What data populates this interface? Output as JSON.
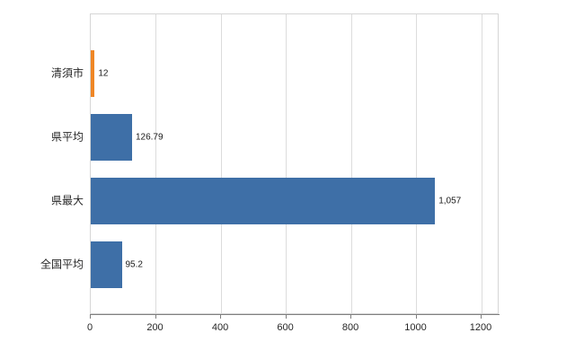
{
  "chart_data": {
    "type": "bar",
    "orientation": "horizontal",
    "title": "",
    "categories": [
      "清須市",
      "県平均",
      "県最大",
      "全国平均"
    ],
    "values": [
      12,
      126.79,
      1057,
      95.2
    ],
    "value_labels": [
      "12",
      "126.79",
      "1,057",
      "95.2"
    ],
    "series_colors": [
      "#ef8625",
      "#3e6fa7",
      "#3e6fa7",
      "#3e6fa7"
    ],
    "x_ticks": [
      0,
      200,
      400,
      600,
      800,
      1000,
      1200
    ],
    "x_tick_labels": [
      "0",
      "200",
      "400",
      "600",
      "800",
      "1000",
      "1200"
    ],
    "xlim": [
      0,
      1255
    ],
    "grid": "vertical",
    "legend": "none",
    "colors": {
      "bar_default": "#3e6fa7",
      "bar_highlight": "#ef8625",
      "gridline": "#dcdcdc",
      "plot_border": "#d6d6d6",
      "axis_line": "#7f7f7f",
      "text": "#262626",
      "background": "#ffffff"
    }
  }
}
